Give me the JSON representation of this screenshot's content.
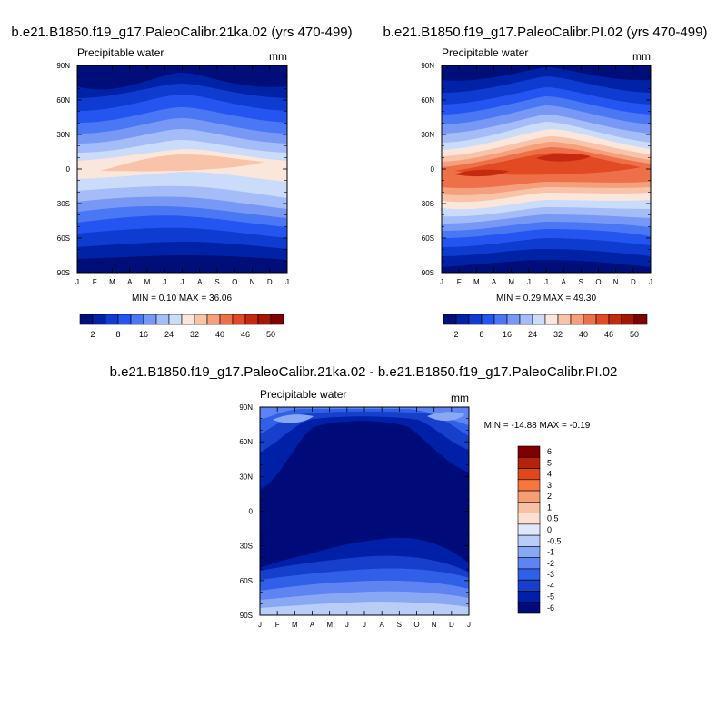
{
  "chart_data": [
    {
      "type": "heatmap",
      "id": "top-left",
      "title": "b.e21.B1850.f19_g17.PaleoCalibr.21ka.02 (yrs 470-499)",
      "left_label": "Precipitable water",
      "units": "mm",
      "x_ticks": [
        "J",
        "F",
        "M",
        "A",
        "M",
        "J",
        "J",
        "A",
        "S",
        "O",
        "N",
        "D",
        "J"
      ],
      "y_ticks": [
        "90N",
        "60N",
        "30N",
        "0",
        "30S",
        "60S",
        "90S"
      ],
      "y_values": [
        90,
        60,
        30,
        0,
        -30,
        -60,
        -90
      ],
      "minmax_text": "MIN =   0.10 MAX =  36.06",
      "min": 0.1,
      "max": 36.06,
      "colorbar_labels": [
        "2",
        "8",
        "16",
        "24",
        "32",
        "40",
        "46",
        "50"
      ],
      "levels": [
        2,
        4,
        8,
        12,
        16,
        20,
        24,
        28,
        32,
        36,
        40,
        44,
        46,
        48,
        50
      ],
      "colorbar_orientation": "horizontal"
    },
    {
      "type": "heatmap",
      "id": "top-right",
      "title": "b.e21.B1850.f19_g17.PaleoCalibr.PI.02 (yrs 470-499)",
      "left_label": "Precipitable water",
      "units": "mm",
      "x_ticks": [
        "J",
        "F",
        "M",
        "A",
        "M",
        "J",
        "J",
        "A",
        "S",
        "O",
        "N",
        "D",
        "J"
      ],
      "y_ticks": [
        "90N",
        "60N",
        "30N",
        "0",
        "30S",
        "60S",
        "90S"
      ],
      "y_values": [
        90,
        60,
        30,
        0,
        -30,
        -60,
        -90
      ],
      "minmax_text": "MIN =   0.29 MAX =  49.30",
      "min": 0.29,
      "max": 49.3,
      "colorbar_labels": [
        "2",
        "8",
        "16",
        "24",
        "32",
        "40",
        "46",
        "50"
      ],
      "levels": [
        2,
        4,
        8,
        12,
        16,
        20,
        24,
        28,
        32,
        36,
        40,
        44,
        46,
        48,
        50
      ],
      "colorbar_orientation": "horizontal"
    },
    {
      "type": "heatmap",
      "id": "difference",
      "title": "b.e21.B1850.f19_g17.PaleoCalibr.21ka.02 - b.e21.B1850.f19_g17.PaleoCalibr.PI.02",
      "left_label": "Precipitable water",
      "units": "mm",
      "x_ticks": [
        "J",
        "F",
        "M",
        "A",
        "M",
        "J",
        "J",
        "A",
        "S",
        "O",
        "N",
        "D",
        "J"
      ],
      "y_ticks": [
        "90N",
        "60N",
        "30N",
        "0",
        "30S",
        "60S",
        "90S"
      ],
      "y_values": [
        90,
        60,
        30,
        0,
        -30,
        -60,
        -90
      ],
      "minmax_text": "MIN = -14.88 MAX =  -0.19",
      "min": -14.88,
      "max": -0.19,
      "colorbar_labels": [
        "6",
        "5",
        "4",
        "3",
        "2",
        "1",
        "0.5",
        "0",
        "-0.5",
        "-1",
        "-2",
        "-3",
        "-4",
        "-5",
        "-6"
      ],
      "levels": [
        6,
        5,
        4,
        3,
        2,
        1,
        0.5,
        0,
        -0.5,
        -1,
        -2,
        -3,
        -4,
        -5,
        -6
      ],
      "colorbar_orientation": "vertical"
    }
  ],
  "colors": {
    "seq": [
      "#000e7a",
      "#0022a6",
      "#0f3cd0",
      "#2555f0",
      "#4a78f5",
      "#7898f5",
      "#a4bcf7",
      "#cadcf9",
      "#fbe6dc",
      "#f8c3a8",
      "#f5a07c",
      "#ee7048",
      "#e14a22",
      "#c52a0e",
      "#a31505",
      "#7e0000"
    ],
    "diff": [
      "#7e0000",
      "#b3220a",
      "#e0481a",
      "#f5763e",
      "#f89e74",
      "#f9c1a3",
      "#fbdfcf",
      "#dfe8fa",
      "#b8cdf7",
      "#89a8f4",
      "#5d84f2",
      "#3060e8",
      "#1640cc",
      "#0020a8",
      "#000b7a"
    ]
  }
}
